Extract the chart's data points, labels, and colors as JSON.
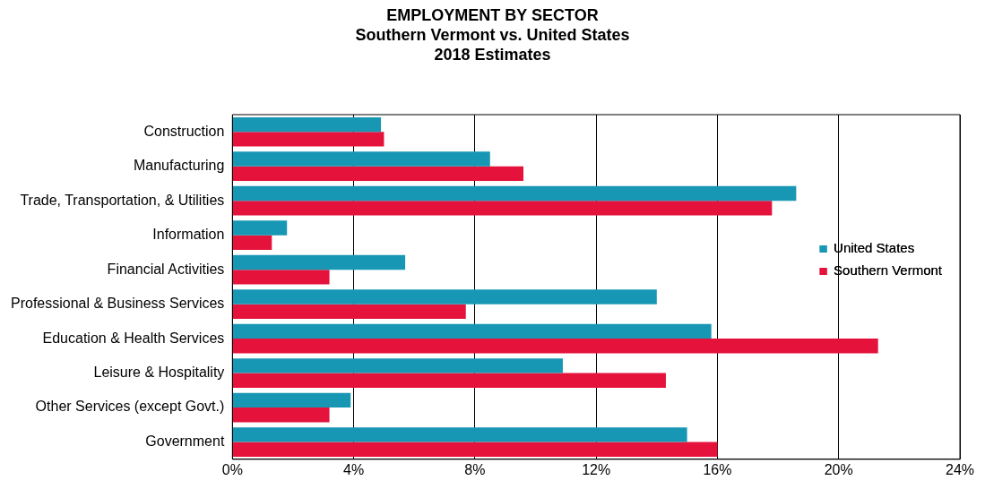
{
  "chart_data": {
    "type": "bar",
    "orientation": "horizontal",
    "title": "EMPLOYMENT BY SECTOR",
    "subtitle": "Southern Vermont vs. United States\n2018 Estimates",
    "categories": [
      "Construction",
      "Manufacturing",
      "Trade, Transportation, & Utilities",
      "Information",
      "Financial Activities",
      "Professional & Business Services",
      "Education & Health Services",
      "Leisure & Hospitality",
      "Other Services (except Govt.)",
      "Government"
    ],
    "series": [
      {
        "name": "United States",
        "color": "#1897b4",
        "values": [
          4.9,
          8.5,
          18.6,
          1.8,
          5.7,
          14.0,
          15.8,
          10.9,
          3.9,
          15.0
        ]
      },
      {
        "name": "Southern Vermont",
        "color": "#e5123c",
        "values": [
          5.0,
          9.6,
          17.8,
          1.3,
          3.2,
          7.7,
          21.3,
          14.3,
          3.2,
          16.0
        ]
      }
    ],
    "xlim": [
      0,
      24
    ],
    "xticks": [
      {
        "value": 0,
        "label": "0%"
      },
      {
        "value": 4,
        "label": "4%"
      },
      {
        "value": 8,
        "label": "8%"
      },
      {
        "value": 12,
        "label": "12%"
      },
      {
        "value": 16,
        "label": "16%"
      },
      {
        "value": 20,
        "label": "20%"
      },
      {
        "value": 24,
        "label": "24%"
      }
    ],
    "grid": "x",
    "legend": "right"
  }
}
